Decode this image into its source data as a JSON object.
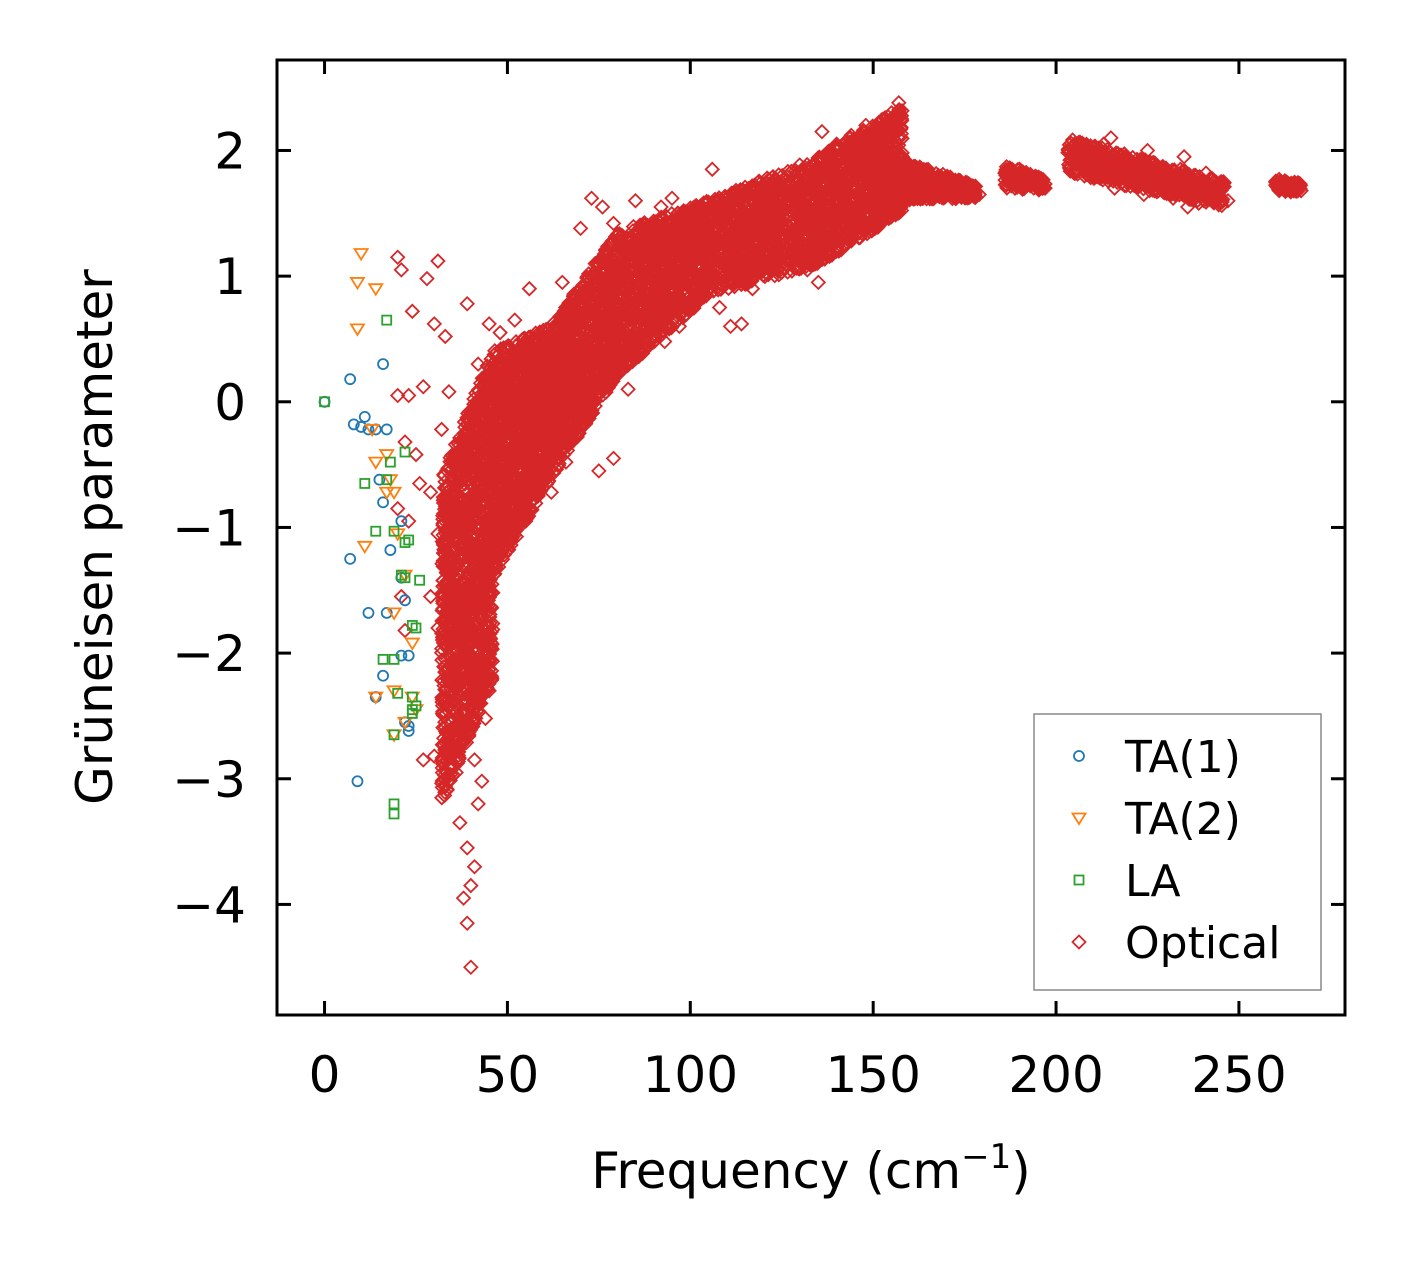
{
  "chart_data": {
    "type": "scatter",
    "title": "",
    "xlabel": "Frequency (cm",
    "xlabel_sup": "−1",
    "xlabel_close": ")",
    "ylabel": "Grüneisen parameter",
    "xlim": [
      -13,
      279
    ],
    "ylim": [
      -4.88,
      2.72
    ],
    "xticks": [
      0,
      50,
      100,
      150,
      200,
      250
    ],
    "xtick_labels": [
      "0",
      "50",
      "100",
      "150",
      "200",
      "250"
    ],
    "yticks": [
      -4,
      -3,
      -2,
      -1,
      0,
      1,
      2
    ],
    "ytick_labels": [
      "−4",
      "−3",
      "−2",
      "−1",
      "0",
      "1",
      "2"
    ],
    "grid": false,
    "legend_position": "lower-right",
    "series": [
      {
        "name": "TA(1)",
        "marker": "circle",
        "color": "#1f77b4",
        "points": [
          [
            0,
            0
          ],
          [
            7,
            0.18
          ],
          [
            8,
            -0.18
          ],
          [
            10,
            -0.2
          ],
          [
            11,
            -0.12
          ],
          [
            12,
            -0.22
          ],
          [
            14,
            -0.22
          ],
          [
            16,
            0.3
          ],
          [
            17,
            -0.22
          ],
          [
            15,
            -0.62
          ],
          [
            16,
            -0.8
          ],
          [
            18,
            -1.18
          ],
          [
            21,
            -0.95
          ],
          [
            7,
            -1.25
          ],
          [
            12,
            -1.68
          ],
          [
            17,
            -1.68
          ],
          [
            21,
            -1.4
          ],
          [
            22,
            -1.58
          ],
          [
            21,
            -2.02
          ],
          [
            23,
            -2.02
          ],
          [
            22,
            -2.55
          ],
          [
            23,
            -2.62
          ],
          [
            23,
            -2.58
          ],
          [
            14,
            -2.35
          ],
          [
            16,
            -2.18
          ],
          [
            9,
            -3.02
          ]
        ]
      },
      {
        "name": "TA(2)",
        "marker": "triangle-down",
        "color": "#ff7f0e",
        "points": [
          [
            10,
            1.18
          ],
          [
            9,
            0.95
          ],
          [
            14,
            0.9
          ],
          [
            9,
            0.58
          ],
          [
            13,
            -0.22
          ],
          [
            17,
            -0.42
          ],
          [
            14,
            -0.48
          ],
          [
            18,
            -0.62
          ],
          [
            17,
            -0.72
          ],
          [
            19,
            -0.72
          ],
          [
            20,
            -1.05
          ],
          [
            11,
            -1.15
          ],
          [
            19,
            -1.68
          ],
          [
            22,
            -1.38
          ],
          [
            24,
            -1.92
          ],
          [
            14,
            -2.35
          ],
          [
            19,
            -2.3
          ],
          [
            24,
            -2.35
          ],
          [
            25,
            -2.45
          ],
          [
            19,
            -2.65
          ],
          [
            22,
            -2.55
          ]
        ]
      },
      {
        "name": "LA",
        "marker": "square",
        "color": "#2ca02c",
        "points": [
          [
            0,
            0
          ],
          [
            17,
            0.65
          ],
          [
            22,
            -0.4
          ],
          [
            18,
            -0.48
          ],
          [
            11,
            -0.65
          ],
          [
            17,
            -0.62
          ],
          [
            14,
            -1.03
          ],
          [
            19,
            -1.03
          ],
          [
            22,
            -1.12
          ],
          [
            23,
            -1.1
          ],
          [
            21,
            -1.38
          ],
          [
            22,
            -1.4
          ],
          [
            26,
            -1.42
          ],
          [
            24,
            -1.78
          ],
          [
            25,
            -1.8
          ],
          [
            16,
            -2.05
          ],
          [
            19,
            -2.05
          ],
          [
            20,
            -2.32
          ],
          [
            24,
            -2.35
          ],
          [
            24,
            -2.45
          ],
          [
            25,
            -2.42
          ],
          [
            24,
            -2.48
          ],
          [
            19,
            -2.65
          ],
          [
            19,
            -3.2
          ],
          [
            19,
            -3.28
          ]
        ]
      },
      {
        "name": "Optical",
        "marker": "diamond",
        "color": "#d62728",
        "points": [
          [
            20,
            1.15
          ],
          [
            21,
            1.05
          ],
          [
            28,
            0.98
          ],
          [
            31,
            1.12
          ],
          [
            24,
            0.72
          ],
          [
            30,
            0.62
          ],
          [
            33,
            0.52
          ],
          [
            39,
            0.78
          ],
          [
            20,
            0.05
          ],
          [
            23,
            0.05
          ],
          [
            27,
            0.12
          ],
          [
            22,
            -0.32
          ],
          [
            25,
            -0.42
          ],
          [
            26,
            -0.65
          ],
          [
            20,
            -0.85
          ],
          [
            23,
            -0.95
          ],
          [
            21,
            -1.55
          ],
          [
            22,
            -1.82
          ],
          [
            27,
            -2.85
          ],
          [
            30,
            -2.82
          ],
          [
            40,
            -4.5
          ],
          [
            39,
            -4.15
          ],
          [
            38,
            -3.95
          ],
          [
            41,
            -3.7
          ],
          [
            40,
            -3.85
          ],
          [
            39,
            -3.55
          ],
          [
            37,
            -3.35
          ],
          [
            42,
            -3.2
          ],
          [
            43,
            -3.02
          ],
          [
            41,
            -2.85
          ],
          [
            44,
            -2.52
          ],
          [
            45,
            -2.3
          ],
          [
            43,
            -2.0
          ],
          [
            46,
            -1.52
          ],
          [
            38,
            -1.95
          ],
          [
            35,
            -2.2
          ],
          [
            33,
            -2.05
          ],
          [
            31,
            -1.8
          ],
          [
            29,
            -1.55
          ],
          [
            35,
            -0.92
          ],
          [
            38,
            -0.62
          ],
          [
            32,
            -0.22
          ],
          [
            34,
            0.08
          ],
          [
            40,
            -0.45
          ],
          [
            42,
            0.3
          ],
          [
            45,
            0.62
          ],
          [
            48,
            0.55
          ],
          [
            52,
            0.65
          ],
          [
            47,
            0.28
          ],
          [
            50,
            -0.1
          ],
          [
            52,
            -0.48
          ],
          [
            55,
            -0.05
          ],
          [
            57,
            0.3
          ],
          [
            60,
            0.15
          ],
          [
            63,
            -0.12
          ],
          [
            66,
            -0.48
          ],
          [
            62,
            -0.72
          ],
          [
            58,
            -0.72
          ],
          [
            55,
            -0.95
          ],
          [
            60,
            0.52
          ],
          [
            56,
            0.9
          ],
          [
            62,
            0.52
          ],
          [
            65,
            0.42
          ],
          [
            68,
            0.1
          ],
          [
            70,
            0.28
          ],
          [
            72,
            0.68
          ],
          [
            75,
            0.85
          ],
          [
            78,
            0.6
          ],
          [
            80,
            0.35
          ],
          [
            83,
            0.1
          ],
          [
            75,
            -0.55
          ],
          [
            79,
            -0.45
          ],
          [
            72,
            0.2
          ],
          [
            85,
            0.55
          ],
          [
            88,
            0.8
          ],
          [
            90,
            0.52
          ],
          [
            93,
            0.48
          ],
          [
            96,
            0.82
          ],
          [
            99,
            1.1
          ],
          [
            102,
            1.28
          ],
          [
            105,
            1.0
          ],
          [
            108,
            0.75
          ],
          [
            111,
            0.6
          ],
          [
            114,
            0.62
          ],
          [
            117,
            0.9
          ],
          [
            120,
            1.12
          ],
          [
            123,
            1.35
          ],
          [
            126,
            1.42
          ],
          [
            129,
            1.18
          ],
          [
            132,
            1.05
          ],
          [
            135,
            0.95
          ],
          [
            137,
            1.25
          ],
          [
            140,
            1.5
          ],
          [
            143,
            1.68
          ],
          [
            146,
            1.95
          ],
          [
            149,
            2.1
          ],
          [
            152,
            2.22
          ],
          [
            155,
            2.3
          ],
          [
            157,
            2.38
          ],
          [
            150,
            1.75
          ],
          [
            153,
            1.85
          ],
          [
            158,
            1.95
          ],
          [
            161,
            1.85
          ],
          [
            164,
            1.8
          ],
          [
            167,
            1.75
          ],
          [
            170,
            1.72
          ],
          [
            173,
            1.68
          ],
          [
            176,
            1.65
          ],
          [
            179,
            1.65
          ],
          [
            136,
            2.15
          ],
          [
            140,
            2.05
          ],
          [
            144,
            2.12
          ],
          [
            148,
            2.2
          ],
          [
            110,
            1.55
          ],
          [
            106,
            1.85
          ],
          [
            103,
            1.45
          ],
          [
            98,
            1.48
          ],
          [
            95,
            1.62
          ],
          [
            92,
            1.55
          ],
          [
            88,
            1.3
          ],
          [
            85,
            1.15
          ],
          [
            82,
            1.0
          ],
          [
            79,
            1.42
          ],
          [
            76,
            1.55
          ],
          [
            73,
            1.62
          ],
          [
            70,
            1.38
          ],
          [
            65,
            0.95
          ],
          [
            74,
            1.1
          ],
          [
            85,
            1.6
          ],
          [
            115,
            1.35
          ],
          [
            125,
            1.75
          ],
          [
            130,
            1.65
          ],
          [
            121,
            1.78
          ],
          [
            145,
            1.45
          ],
          [
            138,
            1.2
          ],
          [
            142,
            1.3
          ],
          [
            133,
            1.52
          ],
          [
            127,
            1.55
          ],
          [
            112,
            1.25
          ],
          [
            118,
            1.15
          ],
          [
            100,
            0.9
          ],
          [
            97,
            0.6
          ],
          [
            94,
            0.72
          ],
          [
            91,
            0.95
          ],
          [
            87,
            0.95
          ],
          [
            84,
            0.72
          ],
          [
            81,
            0.85
          ],
          [
            77,
            0.98
          ],
          [
            73,
            0.42
          ],
          [
            69,
            0.55
          ],
          [
            66,
            0.3
          ],
          [
            64,
            0.05
          ],
          [
            61,
            -0.35
          ],
          [
            59,
            -0.55
          ],
          [
            57,
            -0.28
          ],
          [
            54,
            -0.65
          ],
          [
            51,
            -0.85
          ],
          [
            49,
            -0.5
          ],
          [
            47,
            -0.9
          ],
          [
            45,
            -1.15
          ],
          [
            43,
            -1.35
          ],
          [
            41,
            -1.65
          ],
          [
            40,
            -2.1
          ],
          [
            38,
            -2.45
          ],
          [
            36,
            -2.7
          ],
          [
            35,
            -1.35
          ],
          [
            37,
            -1.05
          ],
          [
            39,
            -0.8
          ],
          [
            33,
            -1.25
          ],
          [
            31,
            -1.05
          ],
          [
            29,
            -0.72
          ],
          [
            36,
            -2.95
          ],
          [
            190,
            1.85
          ],
          [
            192,
            1.8
          ],
          [
            195,
            1.75
          ],
          [
            197,
            1.7
          ],
          [
            186,
            1.82
          ],
          [
            188,
            1.85
          ],
          [
            193,
            1.72
          ],
          [
            205,
            2.05
          ],
          [
            207,
            1.98
          ],
          [
            210,
            1.9
          ],
          [
            213,
            2.05
          ],
          [
            215,
            2.1
          ],
          [
            218,
            1.95
          ],
          [
            220,
            1.88
          ],
          [
            222,
            1.82
          ],
          [
            225,
            2.0
          ],
          [
            227,
            1.9
          ],
          [
            230,
            1.8
          ],
          [
            233,
            1.75
          ],
          [
            235,
            1.95
          ],
          [
            237,
            1.7
          ],
          [
            240,
            1.65
          ],
          [
            243,
            1.62
          ],
          [
            245,
            1.6
          ],
          [
            239,
            1.58
          ],
          [
            236,
            1.55
          ],
          [
            232,
            1.62
          ],
          [
            228,
            1.68
          ],
          [
            224,
            1.65
          ],
          [
            216,
            1.7
          ],
          [
            212,
            1.78
          ],
          [
            208,
            1.92
          ],
          [
            263,
            1.75
          ],
          [
            265,
            1.7
          ],
          [
            267,
            1.68
          ],
          [
            261,
            1.72
          ],
          [
            247,
            1.6
          ],
          [
            244,
            1.72
          ],
          [
            241,
            1.82
          ],
          [
            234,
            1.85
          ],
          [
            226,
            1.72
          ],
          [
            219,
            1.78
          ],
          [
            211,
            1.85
          ]
        ]
      }
    ],
    "optical_bands": [
      {
        "x_from": 32,
        "x_to": 46,
        "y_low_from": -3.2,
        "y_low_to": -2.2,
        "y_high_from": -0.6,
        "y_high_to": 0.4,
        "count": 1400
      },
      {
        "x_from": 46,
        "x_to": 62,
        "y_low_from": -1.4,
        "y_low_to": -0.6,
        "y_high_from": 0.4,
        "y_high_to": 0.6,
        "count": 1200
      },
      {
        "x_from": 62,
        "x_to": 80,
        "y_low_from": -0.6,
        "y_low_to": 0.2,
        "y_high_from": 0.6,
        "y_high_to": 1.35,
        "count": 1000
      },
      {
        "x_from": 80,
        "x_to": 105,
        "y_low_from": 0.2,
        "y_low_to": 0.85,
        "y_high_from": 1.35,
        "y_high_to": 1.6,
        "count": 1000
      },
      {
        "x_from": 105,
        "x_to": 135,
        "y_low_from": 0.85,
        "y_low_to": 1.1,
        "y_high_from": 1.6,
        "y_high_to": 1.95,
        "count": 1000
      },
      {
        "x_from": 135,
        "x_to": 158,
        "y_low_from": 1.1,
        "y_low_to": 1.5,
        "y_high_from": 1.95,
        "y_high_to": 2.35,
        "count": 900
      },
      {
        "x_from": 150,
        "x_to": 178,
        "y_low_from": 1.6,
        "y_low_to": 1.62,
        "y_high_from": 2.0,
        "y_high_to": 1.72,
        "count": 500
      },
      {
        "x_from": 186,
        "x_to": 197,
        "y_low_from": 1.7,
        "y_low_to": 1.68,
        "y_high_from": 1.88,
        "y_high_to": 1.78,
        "count": 120
      },
      {
        "x_from": 203,
        "x_to": 246,
        "y_low_from": 1.82,
        "y_low_to": 1.55,
        "y_high_from": 2.1,
        "y_high_to": 1.75,
        "count": 600
      },
      {
        "x_from": 260,
        "x_to": 267,
        "y_low_from": 1.68,
        "y_low_to": 1.66,
        "y_high_from": 1.78,
        "y_high_to": 1.74,
        "count": 60
      }
    ]
  }
}
